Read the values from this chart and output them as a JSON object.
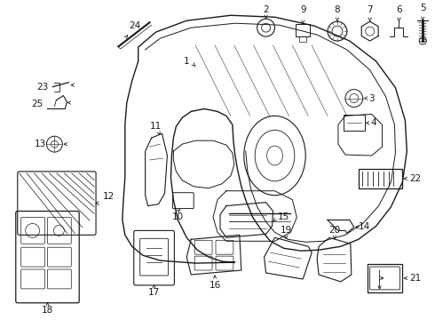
{
  "bg_color": "#ffffff",
  "line_color": "#1a1a1a",
  "fig_w": 4.9,
  "fig_h": 3.6,
  "dpi": 100
}
